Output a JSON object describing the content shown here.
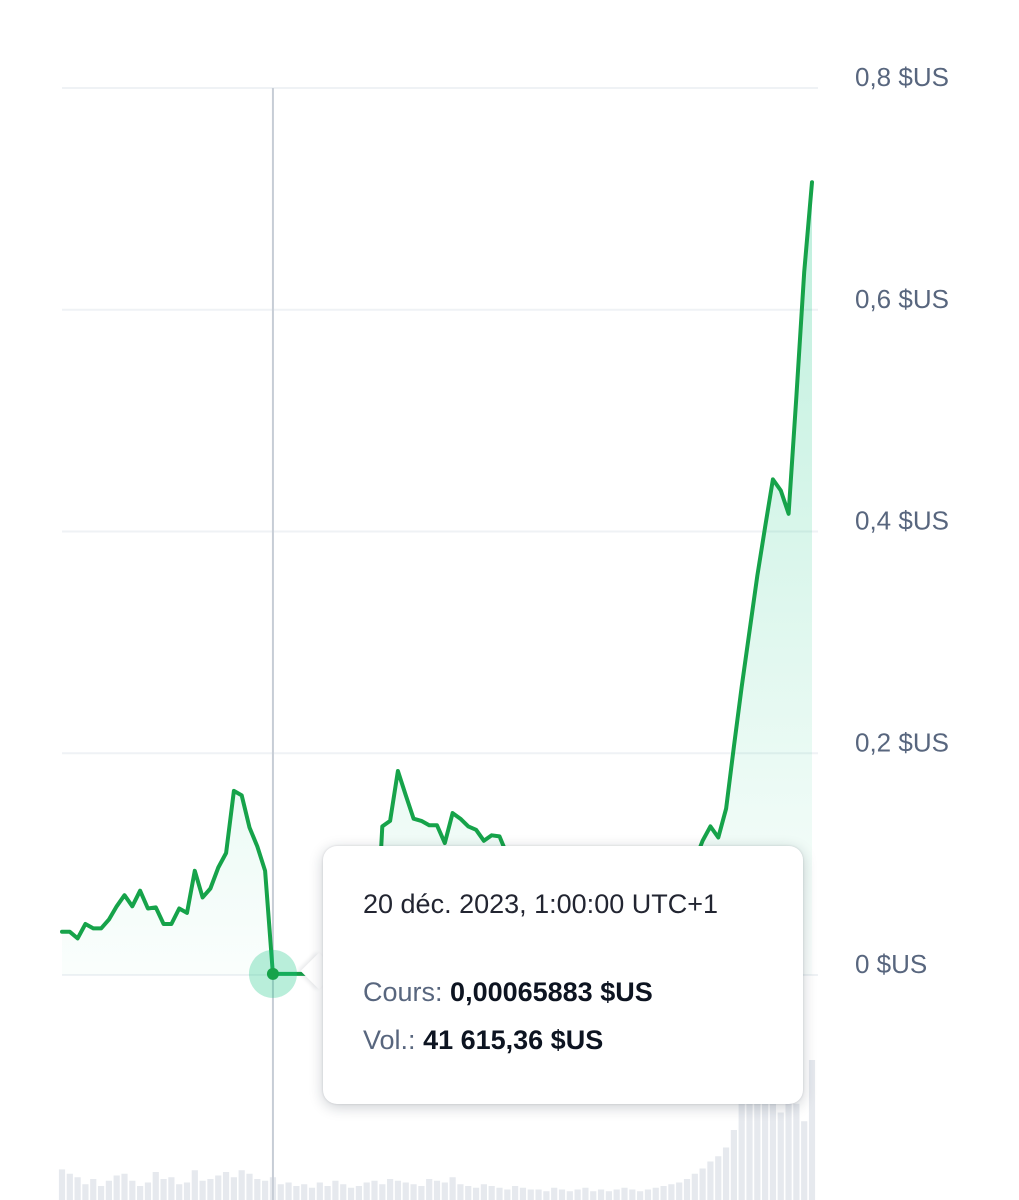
{
  "colors": {
    "line": "#16a34a",
    "fill": "#16c784",
    "grid": "#eff2f5",
    "crosshair": "#c7cdd6",
    "volume": "#e6e9ee",
    "text_muted": "#58667e"
  },
  "chart_data": {
    "type": "line",
    "y_unit": "$US",
    "ylim": [
      0,
      0.8
    ],
    "y_ticks": [
      {
        "value": 0.8,
        "label": "0,8 $US"
      },
      {
        "value": 0.6,
        "label": "0,6 $US"
      },
      {
        "value": 0.4,
        "label": "0,4 $US"
      },
      {
        "value": 0.2,
        "label": "0,2 $US"
      },
      {
        "value": 0,
        "label": "0 $US"
      }
    ],
    "grid": true,
    "series": [
      {
        "values": [
          0.039,
          0.039,
          0.033,
          0.046,
          0.042,
          0.042,
          0.05,
          0.062,
          0.072,
          0.062,
          0.076,
          0.06,
          0.061,
          0.046,
          0.046,
          0.06,
          0.056,
          0.094,
          0.07,
          0.078,
          0.097,
          0.11,
          0.166,
          0.162,
          0.133,
          0.116,
          0.094,
          0.001,
          0.001,
          0.001,
          0.001,
          0.001,
          0.001,
          0.001,
          0.001,
          0.001,
          0.001,
          0.001,
          0.001,
          0.001,
          0.001,
          0.134,
          0.139,
          0.184,
          0.162,
          0.141,
          0.139,
          0.135,
          0.135,
          0.119,
          0.146,
          0.141,
          0.134,
          0.131,
          0.121,
          0.126,
          0.125,
          0.108,
          0.1,
          0.095,
          0.092,
          0.09,
          0.088,
          0.087,
          0.086,
          0.085,
          0.085,
          0.084,
          0.083,
          0.083,
          0.083,
          0.082,
          0.082,
          0.081,
          0.081,
          0.08,
          0.08,
          0.082,
          0.084,
          0.088,
          0.094,
          0.103,
          0.121,
          0.134,
          0.124,
          0.15,
          0.206,
          0.26,
          0.31,
          0.36,
          0.404,
          0.447,
          0.437,
          0.416,
          0.522,
          0.634,
          0.715
        ]
      }
    ],
    "volume": [
      0.035,
      0.03,
      0.026,
      0.018,
      0.024,
      0.016,
      0.022,
      0.028,
      0.03,
      0.022,
      0.016,
      0.02,
      0.032,
      0.024,
      0.026,
      0.018,
      0.02,
      0.034,
      0.022,
      0.024,
      0.028,
      0.032,
      0.026,
      0.034,
      0.03,
      0.024,
      0.022,
      0.026,
      0.018,
      0.02,
      0.016,
      0.018,
      0.014,
      0.02,
      0.016,
      0.022,
      0.018,
      0.014,
      0.016,
      0.02,
      0.022,
      0.018,
      0.024,
      0.022,
      0.02,
      0.018,
      0.016,
      0.024,
      0.022,
      0.02,
      0.026,
      0.018,
      0.016,
      0.014,
      0.018,
      0.016,
      0.014,
      0.012,
      0.016,
      0.014,
      0.012,
      0.012,
      0.01,
      0.014,
      0.012,
      0.01,
      0.012,
      0.014,
      0.01,
      0.012,
      0.01,
      0.012,
      0.014,
      0.012,
      0.01,
      0.012,
      0.014,
      0.016,
      0.018,
      0.02,
      0.024,
      0.03,
      0.036,
      0.044,
      0.05,
      0.06,
      0.08,
      0.11,
      0.14,
      0.13,
      0.15,
      0.12,
      0.1,
      0.14,
      0.11,
      0.09,
      0.16
    ],
    "highlight_index": 27
  },
  "tooltip": {
    "date": "20 déc. 2023, 1:00:00 UTC+1",
    "price_label": "Cours:",
    "price_value": "0,00065883 $US",
    "volume_label": "Vol.:",
    "volume_value": "41 615,36 $US"
  }
}
